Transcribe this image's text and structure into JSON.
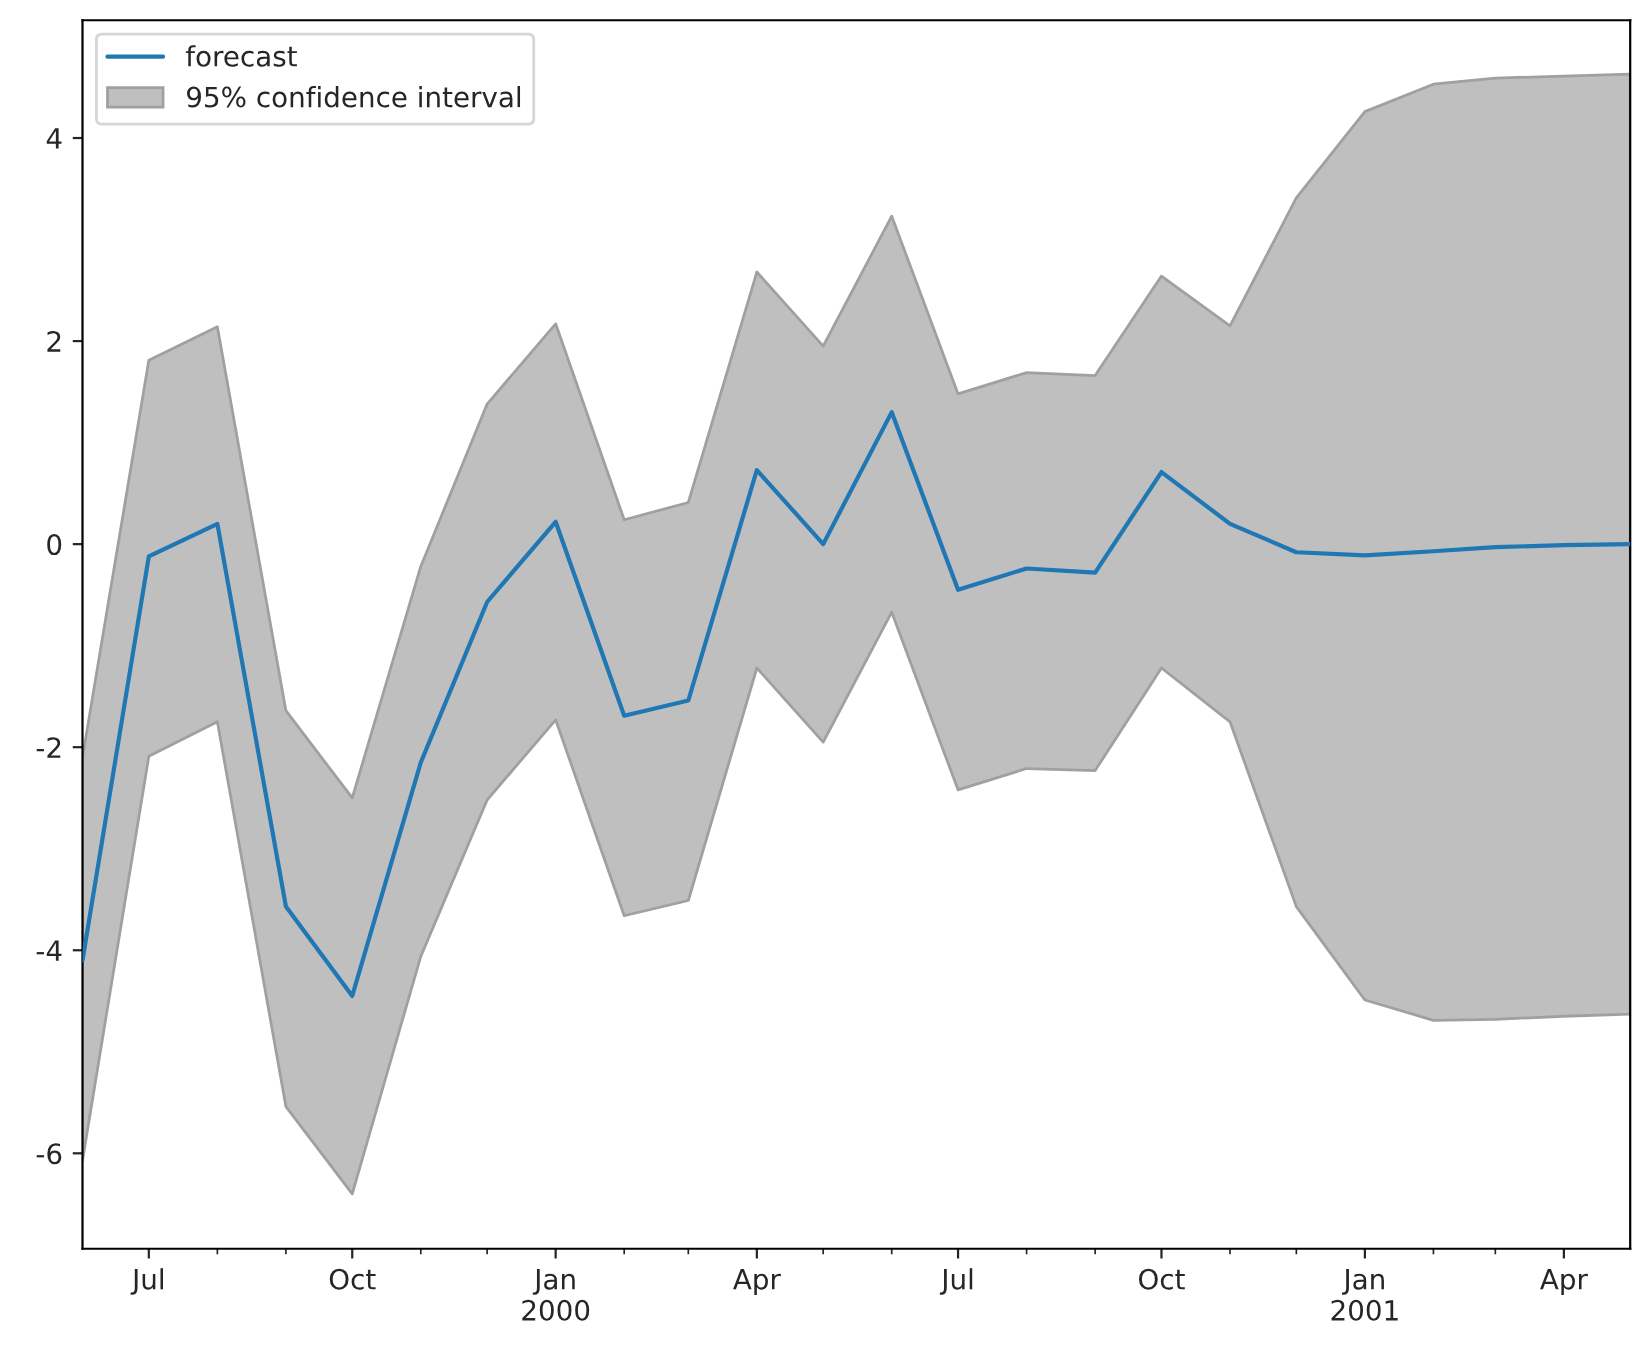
{
  "chart_data": {
    "type": "line",
    "x": [
      "1999-06",
      "1999-07",
      "1999-08",
      "1999-09",
      "1999-10",
      "1999-11",
      "1999-12",
      "2000-01",
      "2000-02",
      "2000-03",
      "2000-04",
      "2000-05",
      "2000-06",
      "2000-07",
      "2000-08",
      "2000-09",
      "2000-10",
      "2000-11",
      "2000-12",
      "2001-01",
      "2001-02",
      "2001-03",
      "2001-04",
      "2001-05"
    ],
    "series": [
      {
        "name": "forecast",
        "type": "line",
        "color": "#1f77b4",
        "values": [
          -4.1,
          -0.12,
          0.2,
          -3.57,
          -4.45,
          -2.15,
          -0.57,
          0.22,
          -1.69,
          -1.54,
          0.73,
          0.0,
          1.3,
          -0.45,
          -0.24,
          -0.28,
          0.71,
          0.2,
          -0.08,
          -0.11,
          -0.07,
          -0.03,
          -0.01,
          0.0
        ]
      },
      {
        "name": "95% confidence interval",
        "type": "area",
        "color": "#bfbfbf",
        "lower": [
          -6.07,
          -2.09,
          -1.75,
          -5.54,
          -6.4,
          -4.06,
          -2.52,
          -1.73,
          -3.66,
          -3.51,
          -1.22,
          -1.95,
          -0.67,
          -2.42,
          -2.21,
          -2.23,
          -1.22,
          -1.75,
          -3.57,
          -4.49,
          -4.69,
          -4.68,
          -4.65,
          -4.63
        ],
        "values": [
          null,
          null,
          null,
          null,
          null,
          null,
          null,
          null,
          null,
          null,
          null,
          null,
          null,
          null,
          null,
          null,
          null,
          null,
          null,
          null,
          null,
          null,
          null,
          null
        ],
        "upper": [
          -2.1,
          1.81,
          2.14,
          -1.64,
          -2.5,
          -0.22,
          1.38,
          2.17,
          0.24,
          0.41,
          2.68,
          1.95,
          3.23,
          1.48,
          1.69,
          1.66,
          2.64,
          2.15,
          3.41,
          4.26,
          4.53,
          4.59,
          4.61,
          4.63
        ]
      }
    ],
    "xlim": [
      "1999-06",
      "2001-05"
    ],
    "xticks": [
      {
        "value": "1999-07",
        "label": "Jul"
      },
      {
        "value": "1999-08",
        "label": null
      },
      {
        "value": "1999-09",
        "label": null
      },
      {
        "value": "1999-10",
        "label": "Oct"
      },
      {
        "value": "1999-11",
        "label": null
      },
      {
        "value": "1999-12",
        "label": null
      },
      {
        "value": "2000-01",
        "label": "Jan\n2000"
      },
      {
        "value": "2000-02",
        "label": null
      },
      {
        "value": "2000-03",
        "label": null
      },
      {
        "value": "2000-04",
        "label": "Apr"
      },
      {
        "value": "2000-05",
        "label": null
      },
      {
        "value": "2000-06",
        "label": null
      },
      {
        "value": "2000-07",
        "label": "Jul"
      },
      {
        "value": "2000-08",
        "label": null
      },
      {
        "value": "2000-09",
        "label": null
      },
      {
        "value": "2000-10",
        "label": "Oct"
      },
      {
        "value": "2000-11",
        "label": null
      },
      {
        "value": "2000-12",
        "label": null
      },
      {
        "value": "2001-01",
        "label": "Jan\n2001"
      },
      {
        "value": "2001-02",
        "label": null
      },
      {
        "value": "2001-03",
        "label": null
      },
      {
        "value": "2001-04",
        "label": "Apr"
      }
    ],
    "ylim": [
      -6.94,
      5.16
    ],
    "yticks": [
      -6,
      -4,
      -2,
      0,
      2,
      4
    ],
    "grid": false,
    "legend": "top left",
    "marker": "none",
    "line_style": "solid"
  }
}
